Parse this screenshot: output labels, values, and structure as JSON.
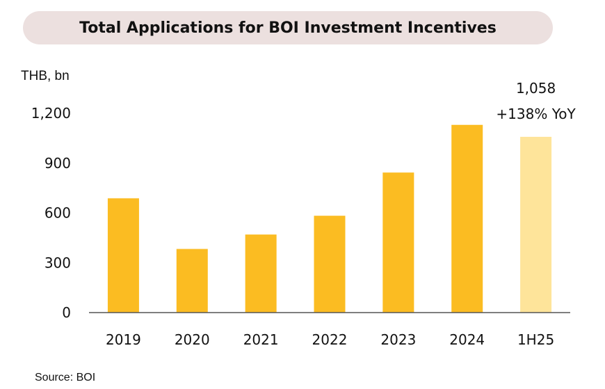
{
  "chart_data": {
    "type": "bar",
    "title": "Total Applications for BOI Investment Incentives",
    "unit_label": "THB, bn",
    "source": "Source: BOI",
    "categories": [
      "2019",
      "2020",
      "2021",
      "2022",
      "2023",
      "2024",
      "1H25"
    ],
    "values": [
      688,
      383,
      470,
      583,
      843,
      1130,
      1058
    ],
    "highlight_index": 6,
    "annotation": {
      "value_label": "1,058",
      "change_label": "+138% YoY"
    },
    "yticks": [
      0,
      300,
      600,
      900,
      1200
    ],
    "ytick_labels": [
      "0",
      "300",
      "600",
      "900",
      "1,200"
    ],
    "ylim": [
      0,
      1200
    ],
    "grid": false,
    "legend": "none",
    "colors": {
      "bar": "#fbbc22",
      "highlight": "#fee49a",
      "axis": "#555555"
    }
  }
}
